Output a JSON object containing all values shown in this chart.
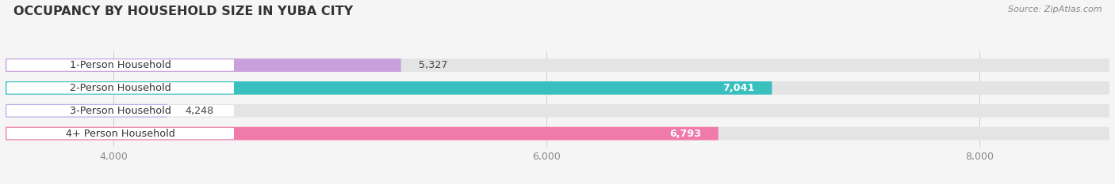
{
  "title": "OCCUPANCY BY HOUSEHOLD SIZE IN YUBA CITY",
  "source": "Source: ZipAtlas.com",
  "categories": [
    "1-Person Household",
    "2-Person Household",
    "3-Person Household",
    "4+ Person Household"
  ],
  "values": [
    5327,
    7041,
    4248,
    6793
  ],
  "bar_colors": [
    "#c9a0dc",
    "#3abfbf",
    "#b0b4e8",
    "#f07aaa"
  ],
  "value_label_colors": [
    "#555555",
    "#ffffff",
    "#555555",
    "#ffffff"
  ],
  "value_label_inside": [
    false,
    true,
    false,
    true
  ],
  "xlim_left": 3500,
  "xlim_right": 8600,
  "xticks": [
    4000,
    6000,
    8000
  ],
  "background_color": "#f5f5f5",
  "bar_bg_color": "#e4e4e4",
  "pill_bg_color": "#ffffff",
  "title_fontsize": 11.5,
  "source_fontsize": 8,
  "bar_height": 0.58,
  "figsize": [
    14.06,
    2.33
  ],
  "dpi": 100
}
